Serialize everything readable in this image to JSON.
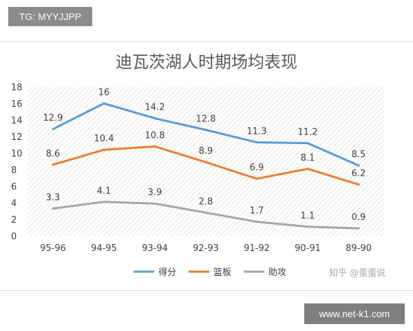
{
  "tag": "TG: MYYJJPP",
  "footer_link": "www.net-k1.com",
  "watermark": "知乎 @蛋蛋说",
  "chart_data": {
    "type": "line",
    "title": "迪瓦茨湖人时期场均表现",
    "categories": [
      "95-96",
      "94-95",
      "93-94",
      "92-93",
      "91-92",
      "90-91",
      "89-90"
    ],
    "ylim": [
      0,
      18
    ],
    "yticks": [
      0,
      2,
      4,
      6,
      8,
      10,
      12,
      14,
      16,
      18
    ],
    "grid": false,
    "legend": "bottom",
    "series": [
      {
        "name": "得分",
        "color": "#5b9bd5",
        "values": [
          12.9,
          16,
          14.2,
          12.8,
          11.3,
          11.2,
          8.5
        ],
        "labels": [
          "12.9",
          "16",
          "14.2",
          "12.8",
          "11.3",
          "11.2",
          "8.5"
        ]
      },
      {
        "name": "篮板",
        "color": "#ed7d31",
        "values": [
          8.6,
          10.4,
          10.8,
          8.9,
          6.9,
          8.1,
          6.2
        ],
        "labels": [
          "8.6",
          "10.4",
          "10.8",
          "8.9",
          "6.9",
          "8.1",
          "6.2"
        ]
      },
      {
        "name": "助攻",
        "color": "#a5a5a5",
        "values": [
          3.3,
          4.1,
          3.9,
          2.8,
          1.7,
          1.1,
          0.9
        ],
        "labels": [
          "3.3",
          "4.1",
          "3.9",
          "2.8",
          "1.7",
          "1.1",
          "0.9"
        ]
      }
    ]
  }
}
